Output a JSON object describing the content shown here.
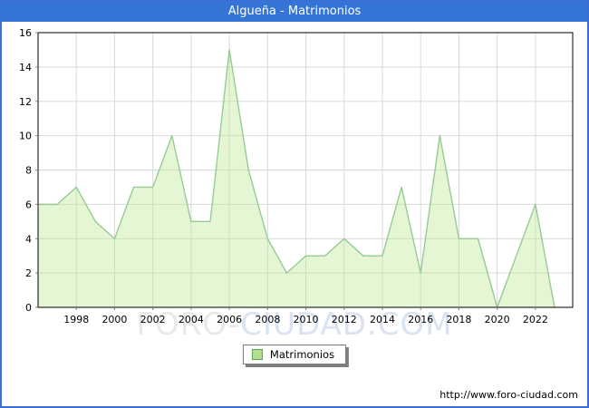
{
  "header": {
    "title": "Algueña - Matrimonios"
  },
  "chart_data": {
    "type": "area",
    "title": "Algueña - Matrimonios",
    "series_name": "Matrimonios",
    "x": [
      1996,
      1997,
      1998,
      1999,
      2000,
      2001,
      2002,
      2003,
      2004,
      2005,
      2006,
      2007,
      2008,
      2009,
      2010,
      2011,
      2012,
      2013,
      2014,
      2015,
      2016,
      2017,
      2018,
      2019,
      2020,
      2021,
      2022,
      2023
    ],
    "values": [
      6,
      6,
      7,
      5,
      4,
      7,
      7,
      10,
      5,
      5,
      15,
      8,
      4,
      2,
      3,
      3,
      4,
      3,
      3,
      7,
      2,
      10,
      4,
      4,
      0,
      3,
      6,
      0
    ],
    "xlabel": "",
    "ylabel": "",
    "ylim": [
      0,
      16
    ],
    "y_ticks": [
      0,
      2,
      4,
      6,
      8,
      10,
      12,
      14,
      16
    ],
    "x_ticks": [
      1998,
      2000,
      2002,
      2004,
      2006,
      2008,
      2010,
      2012,
      2014,
      2016,
      2018,
      2020,
      2022
    ],
    "grid": true,
    "legend": {
      "label": "Matrimonios",
      "position": "bottom-center"
    }
  },
  "watermark": {
    "part1": "FORO",
    "part2": "-",
    "part3": "CIUDAD.COM"
  },
  "footer": {
    "url": "http://www.foro-ciudad.com"
  },
  "colors": {
    "header_bar": "#3575d8",
    "frame_border": "#3a70d5",
    "area_fill": "#b7e88f",
    "area_fill_opacity": "0.38",
    "line": "#96cb96",
    "grid": "#d9d9d9",
    "plot_border": "#000000",
    "tick": "#808080",
    "axis_text": "#000000",
    "watermark_gray": "#e9e9e9",
    "watermark_blue": "#d9e3f2",
    "legend_swatch_fill": "#b4e08c",
    "legend_swatch_border": "#5f9f5f"
  }
}
